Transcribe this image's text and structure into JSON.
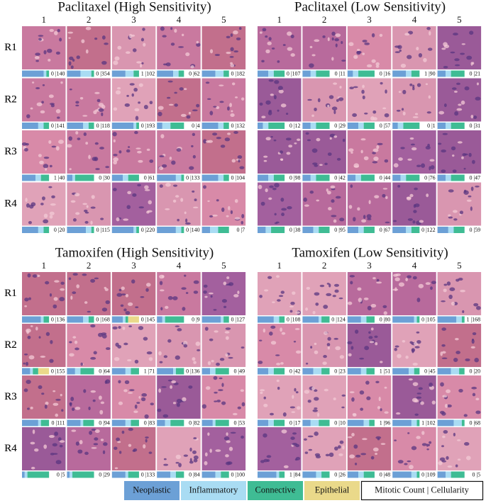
{
  "panels": [
    {
      "title": "Paclitaxel (High Sensitivity)",
      "columns": [
        "1",
        "2",
        "3",
        "4",
        "5"
      ],
      "rows": [
        "R1",
        "R2",
        "R3",
        "R4"
      ],
      "tiles": [
        [
          {
            "label": "0 |140",
            "mix": [
              0.8,
              0.1,
              0.1,
              0
            ]
          },
          {
            "label": "0 |354",
            "mix": [
              0.5,
              0.4,
              0.1,
              0
            ]
          },
          {
            "label": "1 |102",
            "mix": [
              0.5,
              0.3,
              0.2,
              0
            ]
          },
          {
            "label": "0 |62",
            "mix": [
              0.6,
              0.2,
              0.2,
              0
            ]
          },
          {
            "label": "0 |182",
            "mix": [
              0.5,
              0.3,
              0.2,
              0
            ]
          }
        ],
        [
          {
            "label": "0 |141",
            "mix": [
              0.6,
              0.2,
              0.2,
              0
            ]
          },
          {
            "label": "0 |118",
            "mix": [
              0.6,
              0.2,
              0.2,
              0
            ]
          },
          {
            "label": "0 |193",
            "mix": [
              0.8,
              0.1,
              0.1,
              0
            ]
          },
          {
            "label": "0 |4",
            "mix": [
              0.2,
              0.3,
              0.5,
              0
            ]
          },
          {
            "label": "0 |132",
            "mix": [
              0.6,
              0.2,
              0.2,
              0
            ]
          }
        ],
        [
          {
            "label": "1 |40",
            "mix": [
              0.5,
              0.2,
              0.3,
              0
            ]
          },
          {
            "label": "0 |30",
            "mix": [
              0.2,
              0.1,
              0.7,
              0
            ]
          },
          {
            "label": "0 |61",
            "mix": [
              0.4,
              0.2,
              0.4,
              0
            ]
          },
          {
            "label": "0 |133",
            "mix": [
              0.7,
              0.2,
              0.1,
              0
            ]
          },
          {
            "label": "0 |104",
            "mix": [
              0.6,
              0.2,
              0.2,
              0
            ]
          }
        ],
        [
          {
            "label": "0 |20",
            "mix": [
              0.6,
              0.2,
              0.2,
              0
            ]
          },
          {
            "label": "0 |115",
            "mix": [
              0.7,
              0.2,
              0.1,
              0
            ]
          },
          {
            "label": "0 |220",
            "mix": [
              0.8,
              0.1,
              0.1,
              0
            ]
          },
          {
            "label": "0 |140",
            "mix": [
              0.7,
              0.2,
              0.1,
              0
            ]
          },
          {
            "label": "0 |7",
            "mix": [
              0.3,
              0.3,
              0.4,
              0
            ]
          }
        ]
      ]
    },
    {
      "title": "Paclitaxel (Low Sensitivity)",
      "columns": [
        "1",
        "2",
        "3",
        "4",
        "5"
      ],
      "rows": [
        "R1",
        "R2",
        "R3",
        "R4"
      ],
      "tiles": [
        [
          {
            "label": "0 |107",
            "mix": [
              0.4,
              0.2,
              0.4,
              0
            ]
          },
          {
            "label": "0 |11",
            "mix": [
              0.3,
              0.2,
              0.5,
              0
            ]
          },
          {
            "label": "0 |16",
            "mix": [
              0.2,
              0.2,
              0.6,
              0
            ]
          },
          {
            "label": "1 |90",
            "mix": [
              0.5,
              0.2,
              0.3,
              0
            ]
          },
          {
            "label": "0 |21",
            "mix": [
              0.3,
              0.2,
              0.5,
              0
            ]
          }
        ],
        [
          {
            "label": "0 |12",
            "mix": [
              0.2,
              0.2,
              0.6,
              0
            ]
          },
          {
            "label": "0 |29",
            "mix": [
              0.3,
              0.2,
              0.5,
              0
            ]
          },
          {
            "label": "0 |57",
            "mix": [
              0.4,
              0.2,
              0.4,
              0
            ]
          },
          {
            "label": "0 |1",
            "mix": [
              0.2,
              0.2,
              0.6,
              0
            ]
          },
          {
            "label": "0 |31",
            "mix": [
              0.3,
              0.2,
              0.5,
              0
            ]
          }
        ],
        [
          {
            "label": "0 |98",
            "mix": [
              0.4,
              0.2,
              0.4,
              0
            ]
          },
          {
            "label": "0 |42",
            "mix": [
              0.3,
              0.2,
              0.5,
              0
            ]
          },
          {
            "label": "0 |44",
            "mix": [
              0.3,
              0.2,
              0.5,
              0
            ]
          },
          {
            "label": "0 |76",
            "mix": [
              0.3,
              0.2,
              0.5,
              0
            ]
          },
          {
            "label": "0 |47",
            "mix": [
              0.3,
              0.2,
              0.5,
              0
            ]
          }
        ],
        [
          {
            "label": "0 |38",
            "mix": [
              0.3,
              0.2,
              0.5,
              0
            ]
          },
          {
            "label": "0 |95",
            "mix": [
              0.4,
              0.2,
              0.4,
              0
            ]
          },
          {
            "label": "0 |67",
            "mix": [
              0.4,
              0.2,
              0.4,
              0
            ]
          },
          {
            "label": "0 |122",
            "mix": [
              0.5,
              0.2,
              0.3,
              0
            ]
          },
          {
            "label": "0 |59",
            "mix": [
              0.4,
              0.2,
              0.4,
              0
            ]
          }
        ]
      ]
    },
    {
      "title": "Tamoxifen (High Sensitivity)",
      "columns": [
        "1",
        "2",
        "3",
        "4",
        "5"
      ],
      "rows": [
        "R1",
        "R2",
        "R3",
        "R4"
      ],
      "tiles": [
        [
          {
            "label": "0 |136",
            "mix": [
              0.7,
              0.1,
              0.2,
              0
            ]
          },
          {
            "label": "0 |168",
            "mix": [
              0.6,
              0.2,
              0.2,
              0
            ]
          },
          {
            "label": "0 |145",
            "mix": [
              0.4,
              0.1,
              0.1,
              0.4
            ]
          },
          {
            "label": "0 |9",
            "mix": [
              0.2,
              0.1,
              0.7,
              0
            ]
          },
          {
            "label": "0 |127",
            "mix": [
              0.7,
              0.1,
              0.2,
              0
            ]
          }
        ],
        [
          {
            "label": "0 |155",
            "mix": [
              0.3,
              0.1,
              0.2,
              0.4
            ]
          },
          {
            "label": "0 |64",
            "mix": [
              0.3,
              0.2,
              0.5,
              0
            ]
          },
          {
            "label": "1 |71",
            "mix": [
              0.5,
              0.2,
              0.3,
              0
            ]
          },
          {
            "label": "0 |136",
            "mix": [
              0.6,
              0.1,
              0.3,
              0
            ]
          },
          {
            "label": "0 |49",
            "mix": [
              0.3,
              0.2,
              0.5,
              0
            ]
          }
        ],
        [
          {
            "label": "0 |111",
            "mix": [
              0.6,
              0.1,
              0.3,
              0
            ]
          },
          {
            "label": "0 |94",
            "mix": [
              0.5,
              0.1,
              0.4,
              0
            ]
          },
          {
            "label": "0 |83",
            "mix": [
              0.5,
              0.2,
              0.3,
              0
            ]
          },
          {
            "label": "0 |82",
            "mix": [
              0.3,
              0.2,
              0.5,
              0
            ]
          },
          {
            "label": "0 |53",
            "mix": [
              0.4,
              0.1,
              0.5,
              0
            ]
          }
        ],
        [
          {
            "label": "0 |5",
            "mix": [
              0.1,
              0.1,
              0.8,
              0
            ]
          },
          {
            "label": "0 |29",
            "mix": [
              0.1,
              0.1,
              0.8,
              0
            ]
          },
          {
            "label": "0 |133",
            "mix": [
              0.5,
              0.1,
              0.4,
              0
            ]
          },
          {
            "label": "0 |84",
            "mix": [
              0.5,
              0.2,
              0.3,
              0
            ]
          },
          {
            "label": "0 |100",
            "mix": [
              0.5,
              0.2,
              0.3,
              0
            ]
          }
        ]
      ]
    },
    {
      "title": "Tamoxifen (Low Sensitivity)",
      "columns": [
        "1",
        "2",
        "3",
        "4",
        "5"
      ],
      "rows": [
        "R1",
        "R2",
        "R3",
        "R4"
      ],
      "tiles": [
        [
          {
            "label": "0 |108",
            "mix": [
              0.6,
              0.2,
              0.2,
              0
            ]
          },
          {
            "label": "0 |124",
            "mix": [
              0.6,
              0.1,
              0.3,
              0
            ]
          },
          {
            "label": "0 |80",
            "mix": [
              0.5,
              0.2,
              0.3,
              0
            ]
          },
          {
            "label": "0 |105",
            "mix": [
              0.8,
              0.1,
              0.1,
              0
            ]
          },
          {
            "label": "1 |168",
            "mix": [
              0.7,
              0.2,
              0.1,
              0
            ]
          }
        ],
        [
          {
            "label": "0 |42",
            "mix": [
              0.4,
              0.2,
              0.4,
              0
            ]
          },
          {
            "label": "0 |23",
            "mix": [
              0.4,
              0.3,
              0.3,
              0
            ]
          },
          {
            "label": "1 |51",
            "mix": [
              0.5,
              0.2,
              0.3,
              0
            ]
          },
          {
            "label": "0 |45",
            "mix": [
              0.6,
              0.2,
              0.2,
              0
            ]
          },
          {
            "label": "0 |20",
            "mix": [
              0.5,
              0.3,
              0.2,
              0
            ]
          }
        ],
        [
          {
            "label": "0 |17",
            "mix": [
              0.4,
              0.2,
              0.4,
              0
            ]
          },
          {
            "label": "0 |10",
            "mix": [
              0.3,
              0.3,
              0.4,
              0
            ]
          },
          {
            "label": "1 |96",
            "mix": [
              0.6,
              0.2,
              0.2,
              0
            ]
          },
          {
            "label": "1 |102",
            "mix": [
              0.7,
              0.2,
              0.1,
              0
            ]
          },
          {
            "label": "0 |68",
            "mix": [
              0.6,
              0.3,
              0.1,
              0
            ]
          }
        ],
        [
          {
            "label": "1 |84",
            "mix": [
              0.7,
              0.1,
              0.2,
              0
            ]
          },
          {
            "label": "0 |26",
            "mix": [
              0.5,
              0.2,
              0.3,
              0
            ]
          },
          {
            "label": "0 |48",
            "mix": [
              0.4,
              0.2,
              0.4,
              0
            ]
          },
          {
            "label": "0 |109",
            "mix": [
              0.7,
              0.2,
              0.1,
              0
            ]
          },
          {
            "label": "0 |5",
            "mix": [
              0.3,
              0.2,
              0.5,
              0
            ]
          }
        ]
      ]
    }
  ],
  "legend": [
    {
      "name": "Neoplastic",
      "color": "#6ca0d6"
    },
    {
      "name": "Inflammatory",
      "color": "#a9dcf3"
    },
    {
      "name": "Connective",
      "color": "#3fbc94"
    },
    {
      "name": "Epithelial",
      "color": "#ead98a"
    }
  ],
  "legend_note": "Mitotic Count | Cellularity"
}
